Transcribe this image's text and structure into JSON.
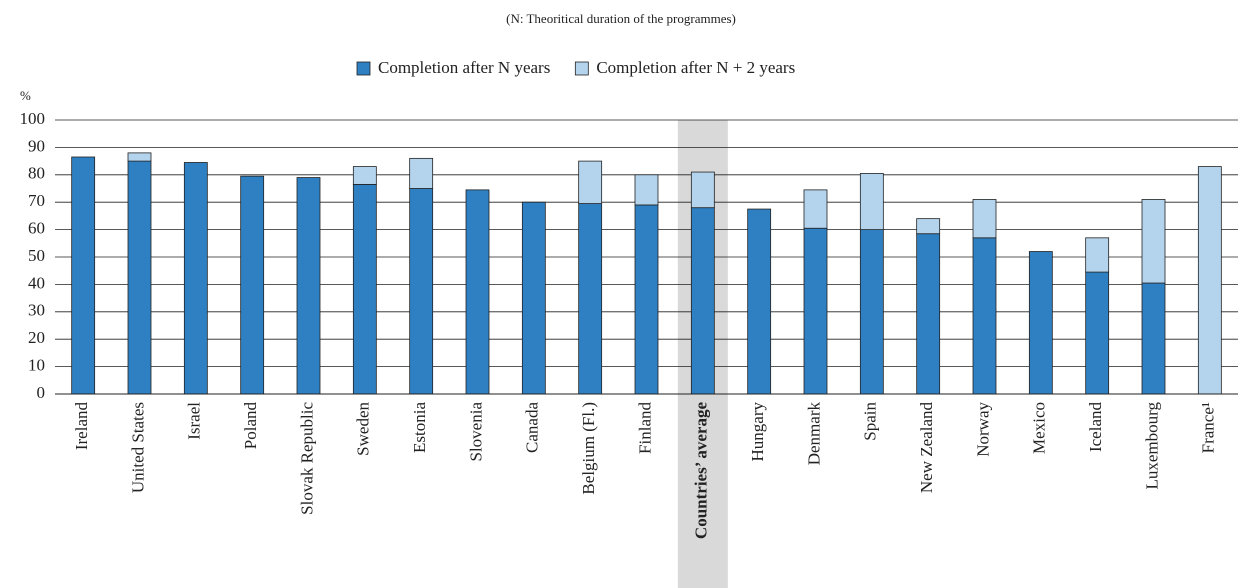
{
  "chart_data": {
    "type": "stacked-bar",
    "subtitle": "(N: Theoritical duration of the programmes)",
    "y_label": "%",
    "categories": [
      "Ireland",
      "United States",
      "Israel",
      "Poland",
      "Slovak Republic",
      "Sweden",
      "Estonia",
      "Slovenia",
      "Canada",
      "Belgium (Fl.)",
      "Finland",
      "Countries’ average",
      "Hungary",
      "Denmark",
      "Spain",
      "New Zealand",
      "Norway",
      "Mexico",
      "Iceland",
      "Luxembourg",
      "France¹"
    ],
    "highlight": "Countries’ average",
    "series": [
      {
        "name": "Completion after N years",
        "color": "#2f80c2",
        "values": [
          86.5,
          85,
          84.5,
          79.5,
          79,
          76.5,
          75,
          74.5,
          70,
          69.5,
          69,
          68,
          67.5,
          60.5,
          60,
          58.5,
          57,
          52,
          44.5,
          40.5,
          null
        ]
      },
      {
        "name": "Completion after N + 2 years",
        "color": "#b4d4ee",
        "values": [
          null,
          3,
          null,
          null,
          null,
          6.5,
          11,
          null,
          null,
          15.5,
          11,
          13,
          null,
          14,
          20.5,
          5.5,
          14,
          null,
          12.5,
          30.5,
          83
        ]
      }
    ],
    "ylim": [
      0,
      100
    ],
    "yticks": [
      0,
      10,
      20,
      30,
      40,
      50,
      60,
      70,
      80,
      90,
      100
    ],
    "grid": true
  }
}
